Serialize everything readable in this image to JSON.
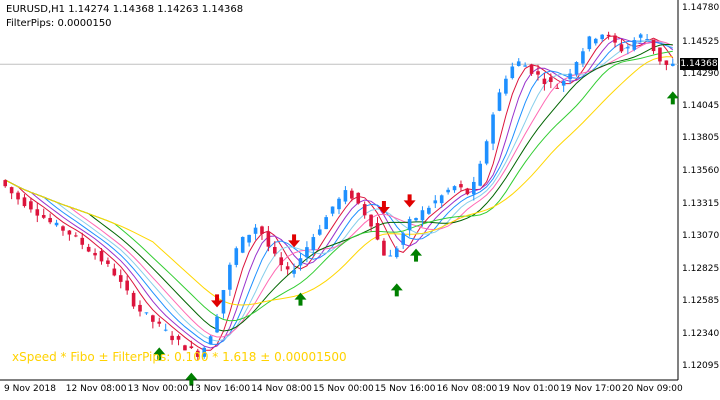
{
  "header": {
    "title": "EURUSD,H1  1.14274 1.14368 1.14263 1.14368",
    "filter": "FilterPips:  0.0000150"
  },
  "overlay_text": "xSpeed * Fibo ± FilterPips: 0.100 * 1.618 ± 0.00001500",
  "price_axis": {
    "ticks": [
      "1.14780",
      "1.14525",
      "1.14290",
      "1.14045",
      "1.13805",
      "1.13560",
      "1.13315",
      "1.13070",
      "1.12825",
      "1.12585",
      "1.12340",
      "1.12095"
    ],
    "current_price": "1.14368"
  },
  "time_axis": {
    "labels": [
      "9 Nov 2018",
      "12 Nov 08:00",
      "13 Nov 00:00",
      "13 Nov 16:00",
      "14 Nov 08:00",
      "15 Nov 00:00",
      "15 Nov 16:00",
      "16 Nov 08:00",
      "19 Nov 01:00",
      "19 Nov 17:00",
      "20 Nov 09:00"
    ]
  },
  "colors": {
    "bull": "#1e90ff",
    "bear": "#dc143c",
    "ma_lines": [
      "#dc143c",
      "#9932cc",
      "#1e90ff",
      "#87ceeb",
      "#ff69b4",
      "#006400",
      "#32cd32",
      "#ffd700"
    ],
    "buy_arrow": "#008000",
    "sell_arrow": "#e00000"
  },
  "chart_data": {
    "type": "candlestick",
    "instrument": "EURUSD,H1",
    "ylim": [
      1.12,
      1.1485
    ],
    "price_path": [
      1.135,
      1.1345,
      1.134,
      1.1336,
      1.1333,
      1.133,
      1.1326,
      1.1322,
      1.1318,
      1.1315,
      1.1313,
      1.131,
      1.1306,
      1.1302,
      1.1298,
      1.1294,
      1.129,
      1.1285,
      1.128,
      1.1272,
      1.1265,
      1.1258,
      1.1252,
      1.1248,
      1.1244,
      1.124,
      1.1236,
      1.1232,
      1.1228,
      1.1225,
      1.1222,
      1.122,
      1.1225,
      1.1235,
      1.125,
      1.1268,
      1.1285,
      1.1298,
      1.1305,
      1.131,
      1.1315,
      1.131,
      1.13,
      1.1292,
      1.1285,
      1.128,
      1.1285,
      1.1292,
      1.13,
      1.1308,
      1.1315,
      1.1322,
      1.133,
      1.1335,
      1.134,
      1.1338,
      1.1332,
      1.1325,
      1.1318,
      1.1305,
      1.1295,
      1.1292,
      1.13,
      1.131,
      1.1318,
      1.1322,
      1.1326,
      1.133,
      1.1334,
      1.1338,
      1.1342,
      1.1345,
      1.1343,
      1.134,
      1.1346,
      1.136,
      1.138,
      1.14,
      1.1415,
      1.1428,
      1.1435,
      1.1438,
      1.1436,
      1.1432,
      1.1428,
      1.1425,
      1.1422,
      1.142,
      1.1425,
      1.1432,
      1.144,
      1.1448,
      1.1455,
      1.1458,
      1.146,
      1.1456,
      1.1452,
      1.1448,
      1.145,
      1.1455,
      1.1458,
      1.1456,
      1.1448,
      1.144,
      1.1436
    ],
    "signals": [
      {
        "type": "sell",
        "bar": 33
      },
      {
        "type": "sell",
        "bar": 45
      },
      {
        "type": "sell",
        "bar": 59
      },
      {
        "type": "sell",
        "bar": 63
      },
      {
        "type": "buy",
        "bar": 24
      },
      {
        "type": "buy",
        "bar": 29
      },
      {
        "type": "buy",
        "bar": 46
      },
      {
        "type": "buy",
        "bar": 61
      },
      {
        "type": "buy",
        "bar": 64
      },
      {
        "type": "buy",
        "bar": 104
      }
    ]
  }
}
